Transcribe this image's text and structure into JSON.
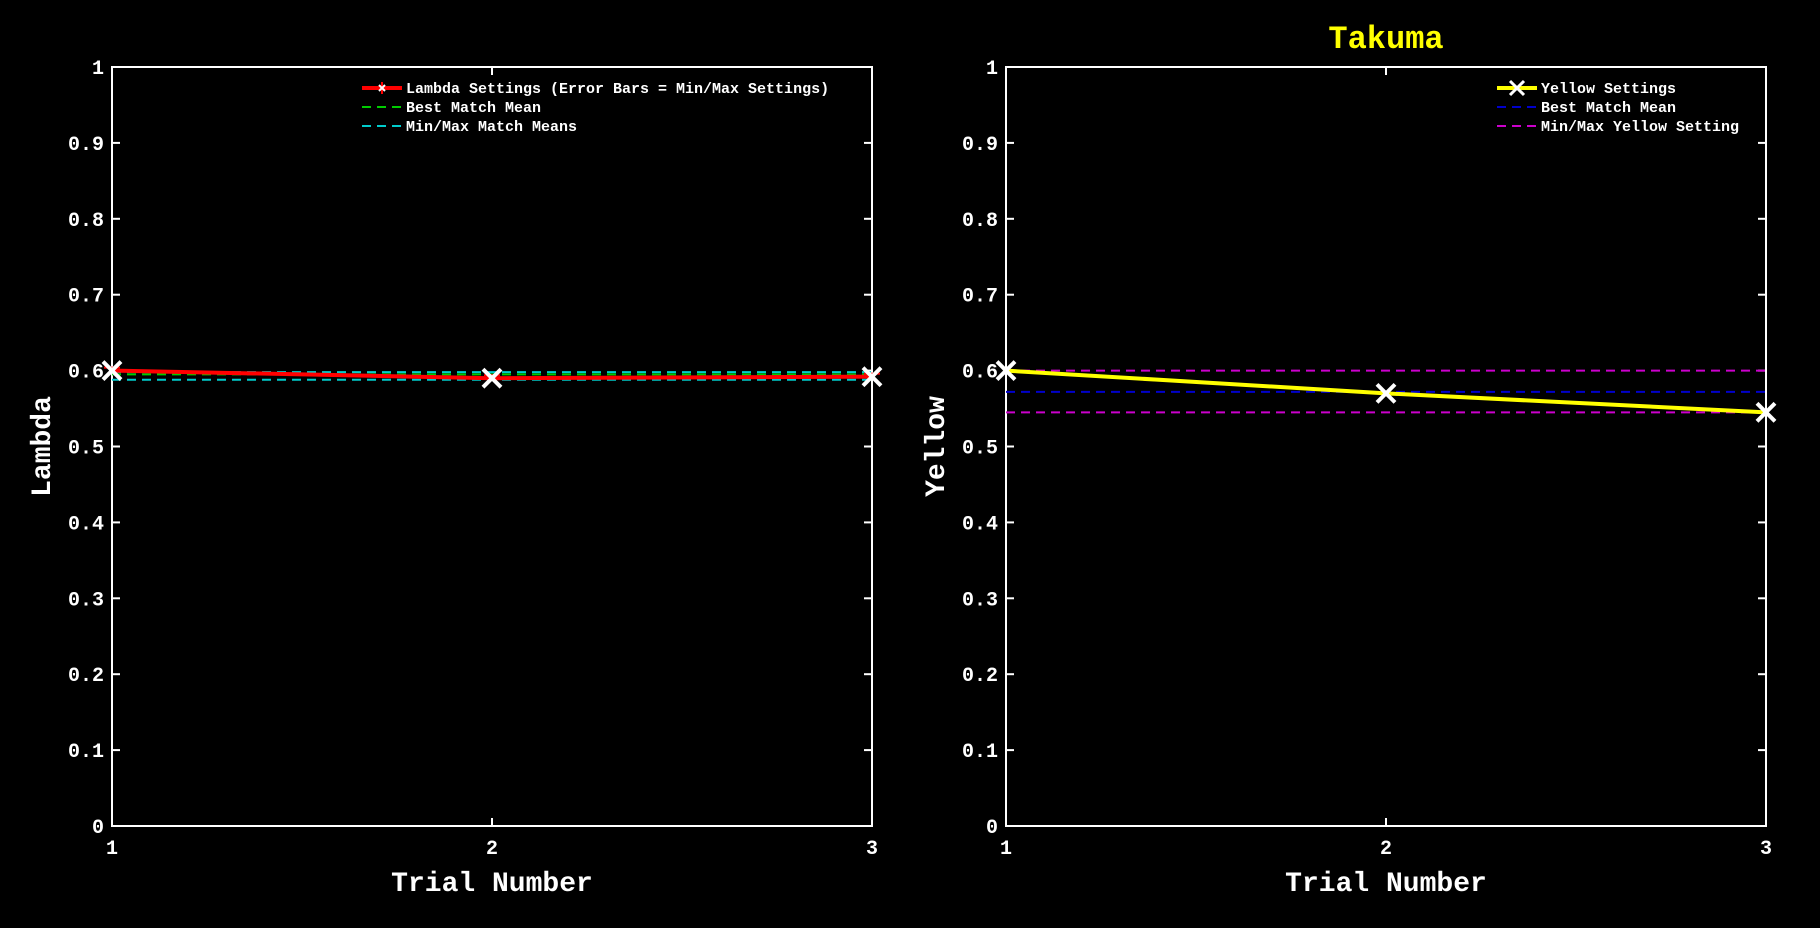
{
  "figure_title": "Takuma",
  "colors": {
    "background": "#000000",
    "axes": "#ffffff",
    "title": "#ffff00",
    "lambda_series": "#ff0000",
    "best_match_left": "#00cc00",
    "minmax_left": "#00cccc",
    "yellow_series": "#ffff00",
    "best_match_right": "#0000cc",
    "minmax_right": "#cc00cc",
    "marker": "#ffffff"
  },
  "chart_data": [
    {
      "type": "line",
      "xlabel": "Trial Number",
      "ylabel": "Lambda",
      "xlim": [
        1,
        3
      ],
      "ylim": [
        0,
        1
      ],
      "xticks": [
        "1",
        "2",
        "3"
      ],
      "yticks": [
        "0",
        "0.1",
        "0.2",
        "0.3",
        "0.4",
        "0.5",
        "0.6",
        "0.7",
        "0.8",
        "0.9",
        "1"
      ],
      "grid": false,
      "legend_position": "top-right",
      "series": [
        {
          "name": "Lambda Settings (Error Bars = Min/Max Settings)",
          "x": [
            1,
            2,
            3
          ],
          "values": [
            0.6,
            0.59,
            0.592
          ],
          "style": "solid-errorbar-x",
          "color_key": "lambda_series"
        }
      ],
      "reference_lines": [
        {
          "name": "Best Match Mean",
          "values": [
            0.595
          ],
          "style": "dashed",
          "color_key": "best_match_left"
        },
        {
          "name": "Min/Max Match Means",
          "values": [
            0.588,
            0.598
          ],
          "style": "dashed",
          "color_key": "minmax_left"
        }
      ]
    },
    {
      "type": "line",
      "xlabel": "Trial Number",
      "ylabel": "Yellow",
      "xlim": [
        1,
        3
      ],
      "ylim": [
        0,
        1
      ],
      "xticks": [
        "1",
        "2",
        "3"
      ],
      "yticks": [
        "0",
        "0.1",
        "0.2",
        "0.3",
        "0.4",
        "0.5",
        "0.6",
        "0.7",
        "0.8",
        "0.9",
        "1"
      ],
      "grid": false,
      "legend_position": "top-right",
      "series": [
        {
          "name": "Yellow Settings",
          "x": [
            1,
            2,
            3
          ],
          "values": [
            0.6,
            0.57,
            0.545
          ],
          "style": "solid-x",
          "color_key": "yellow_series"
        }
      ],
      "reference_lines": [
        {
          "name": "Best Match Mean",
          "values": [
            0.572
          ],
          "style": "dashed",
          "color_key": "best_match_right"
        },
        {
          "name": "Min/Max Yellow Setting",
          "values": [
            0.545,
            0.6
          ],
          "style": "dashed",
          "color_key": "minmax_right"
        }
      ]
    }
  ]
}
